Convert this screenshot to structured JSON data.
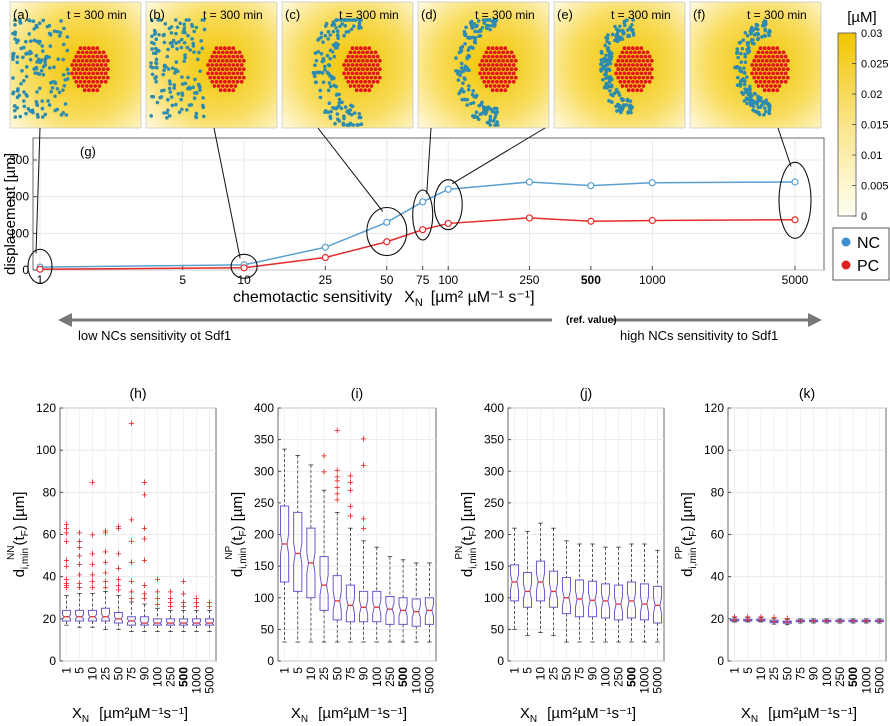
{
  "panels": {
    "snapshots": [
      {
        "label": "(a)",
        "time": "t = 300 min"
      },
      {
        "label": "(b)",
        "time": "t = 300 min"
      },
      {
        "label": "(c)",
        "time": "t = 300 min"
      },
      {
        "label": "(d)",
        "time": "t = 300 min"
      },
      {
        "label": "(e)",
        "time": "t = 300 min"
      },
      {
        "label": "(f)",
        "time": "t = 300 min"
      }
    ],
    "colorbar": {
      "unit": "[µM]",
      "ticks": [
        "0.03",
        "0.025",
        "0.02",
        "0.015",
        "0.01",
        "0.005",
        "0"
      ],
      "range": [
        0,
        0.03
      ],
      "color_low": "#fffde8",
      "color_high": "#f2c400"
    },
    "legend": [
      {
        "name": "NC",
        "color": "#3a8fd0"
      },
      {
        "name": "PC",
        "color": "#e02020"
      }
    ],
    "arrows": {
      "left_text": "low NCs sensitivity ot Sdf1",
      "mid_text": "(ref. value)",
      "right_text": "high NCs sensitivity to Sdf1"
    }
  },
  "chart_data": [
    {
      "type": "line",
      "panel_label": "(g)",
      "xscale": "log",
      "x": [
        1,
        10,
        25,
        50,
        75,
        100,
        250,
        500,
        1000,
        5000
      ],
      "x_tick_labels": [
        "1",
        "5",
        "10",
        "25",
        "50",
        "75",
        "100",
        "250",
        "500",
        "1000",
        "5000"
      ],
      "x_tick_values": [
        1,
        5,
        10,
        25,
        50,
        75,
        100,
        250,
        500,
        1000,
        5000
      ],
      "bold_tick": "500",
      "xlabel": "chemotactic sensitivity",
      "xlabel_symbol": "X",
      "xlabel_sub": "N",
      "xlabel_units": "[µm² µM⁻¹ s⁻¹]",
      "ylabel": "displacement [µm]",
      "ylim": [
        0,
        360
      ],
      "yticks": [
        0,
        100,
        200,
        300
      ],
      "grid": true,
      "series": [
        {
          "name": "NC",
          "color": "#5a9fd0",
          "values": [
            8,
            14,
            62,
            130,
            186,
            220,
            240,
            230,
            238,
            240
          ]
        },
        {
          "name": "PC",
          "color": "#e52a2a",
          "values": [
            2,
            6,
            34,
            77,
            110,
            127,
            142,
            133,
            135,
            137
          ]
        }
      ]
    },
    {
      "type": "box",
      "panel_label": "(h)",
      "categories": [
        "1",
        "5",
        "10",
        "25",
        "50",
        "75",
        "90",
        "100",
        "250",
        "500",
        "1000",
        "5000"
      ],
      "bold_category": "500",
      "ylim": [
        0,
        120
      ],
      "yticks": [
        0,
        20,
        40,
        60,
        80,
        100,
        120
      ],
      "ylabel_main": "d",
      "ylabel_sub": "i,min",
      "ylabel_sup": "NN",
      "ylabel_arg": "(t",
      "ylabel_arg_sub": "F",
      "ylabel_tail": ")  [µm]",
      "xlabel_symbol": "X",
      "xlabel_sub": "N",
      "xlabel_units": "[µm²µM⁻¹s⁻¹]",
      "boxes": [
        {
          "lo": 17,
          "q1": 19,
          "med": 21,
          "q3": 24,
          "hi": 31,
          "outliers": [
            35,
            36,
            37,
            39,
            45,
            48,
            57,
            61,
            63,
            65
          ]
        },
        {
          "lo": 16,
          "q1": 19,
          "med": 21,
          "q3": 24,
          "hi": 32,
          "outliers": [
            35,
            37,
            41,
            46,
            50,
            54,
            57,
            61
          ]
        },
        {
          "lo": 16,
          "q1": 19,
          "med": 21,
          "q3": 24,
          "hi": 32,
          "outliers": [
            35,
            38,
            41,
            46,
            51,
            60,
            85
          ]
        },
        {
          "lo": 15,
          "q1": 19,
          "med": 21,
          "q3": 25,
          "hi": 33,
          "outliers": [
            35,
            38,
            42,
            47,
            52,
            61,
            62
          ]
        },
        {
          "lo": 15,
          "q1": 18,
          "med": 20,
          "q3": 23,
          "hi": 31,
          "outliers": [
            34,
            36,
            39,
            44,
            51,
            63,
            64
          ]
        },
        {
          "lo": 14,
          "q1": 17,
          "med": 19,
          "q3": 21,
          "hi": 28,
          "outliers": [
            30,
            33,
            38,
            47,
            57,
            67,
            113
          ]
        },
        {
          "lo": 14,
          "q1": 17,
          "med": 18,
          "q3": 21,
          "hi": 27,
          "outliers": [
            30,
            32,
            36,
            48,
            58,
            63,
            79,
            85
          ]
        },
        {
          "lo": 14,
          "q1": 17,
          "med": 18,
          "q3": 20,
          "hi": 25,
          "outliers": [
            27,
            30,
            33,
            39
          ]
        },
        {
          "lo": 14,
          "q1": 17,
          "med": 18,
          "q3": 20,
          "hi": 24,
          "outliers": [
            26,
            28,
            30,
            33
          ]
        },
        {
          "lo": 14,
          "q1": 17,
          "med": 18,
          "q3": 20,
          "hi": 24,
          "outliers": [
            26,
            28,
            32,
            38
          ]
        },
        {
          "lo": 14,
          "q1": 17,
          "med": 18,
          "q3": 20,
          "hi": 24,
          "outliers": [
            26,
            28,
            30
          ]
        },
        {
          "lo": 14,
          "q1": 17,
          "med": 18,
          "q3": 20,
          "hi": 24,
          "outliers": [
            26,
            28
          ]
        }
      ]
    },
    {
      "type": "box",
      "panel_label": "(i)",
      "categories": [
        "1",
        "5",
        "10",
        "25",
        "50",
        "75",
        "90",
        "100",
        "250",
        "500",
        "1000",
        "5000"
      ],
      "bold_category": "500",
      "ylim": [
        0,
        400
      ],
      "yticks": [
        0,
        50,
        100,
        150,
        200,
        250,
        300,
        350,
        400
      ],
      "ylabel_main": "d",
      "ylabel_sub": "i,min",
      "ylabel_sup": "NP",
      "ylabel_arg": "(t",
      "ylabel_arg_sub": "F",
      "ylabel_tail": ")  [µm]",
      "xlabel_symbol": "X",
      "xlabel_sub": "N",
      "xlabel_units": "[µm²µM⁻¹s⁻¹]",
      "boxes": [
        {
          "lo": 30,
          "q1": 125,
          "med": 185,
          "q3": 245,
          "hi": 335,
          "outliers": []
        },
        {
          "lo": 30,
          "q1": 110,
          "med": 170,
          "q3": 235,
          "hi": 325,
          "outliers": []
        },
        {
          "lo": 30,
          "q1": 100,
          "med": 155,
          "q3": 210,
          "hi": 310,
          "outliers": []
        },
        {
          "lo": 30,
          "q1": 80,
          "med": 120,
          "q3": 165,
          "hi": 270,
          "outliers": [
            300,
            325
          ]
        },
        {
          "lo": 30,
          "q1": 65,
          "med": 95,
          "q3": 135,
          "hi": 235,
          "outliers": [
            255,
            265,
            275,
            285,
            292,
            302,
            365
          ]
        },
        {
          "lo": 30,
          "q1": 62,
          "med": 88,
          "q3": 120,
          "hi": 210,
          "outliers": [
            230,
            245,
            270,
            283,
            293
          ]
        },
        {
          "lo": 30,
          "q1": 62,
          "med": 85,
          "q3": 110,
          "hi": 190,
          "outliers": [
            210,
            225,
            310,
            352
          ]
        },
        {
          "lo": 30,
          "q1": 62,
          "med": 85,
          "q3": 110,
          "hi": 180,
          "outliers": []
        },
        {
          "lo": 30,
          "q1": 58,
          "med": 82,
          "q3": 102,
          "hi": 165,
          "outliers": []
        },
        {
          "lo": 30,
          "q1": 58,
          "med": 80,
          "q3": 100,
          "hi": 160,
          "outliers": []
        },
        {
          "lo": 30,
          "q1": 55,
          "med": 78,
          "q3": 98,
          "hi": 155,
          "outliers": []
        },
        {
          "lo": 30,
          "q1": 58,
          "med": 80,
          "q3": 100,
          "hi": 155,
          "outliers": []
        }
      ]
    },
    {
      "type": "box",
      "panel_label": "(j)",
      "categories": [
        "1",
        "5",
        "10",
        "25",
        "50",
        "75",
        "90",
        "100",
        "250",
        "500",
        "1000",
        "5000"
      ],
      "bold_category": "500",
      "ylim": [
        0,
        400
      ],
      "yticks": [
        0,
        50,
        100,
        150,
        200,
        250,
        300,
        350,
        400
      ],
      "ylabel_main": "d",
      "ylabel_sub": "i,min",
      "ylabel_sup": "PN",
      "ylabel_arg": "(t",
      "ylabel_arg_sub": "F",
      "ylabel_tail": ")  [µm]",
      "xlabel_symbol": "X",
      "xlabel_sub": "N",
      "xlabel_units": "[µm²µM⁻¹s⁻¹]",
      "boxes": [
        {
          "lo": 50,
          "q1": 95,
          "med": 125,
          "q3": 152,
          "hi": 210,
          "outliers": []
        },
        {
          "lo": 40,
          "q1": 85,
          "med": 110,
          "q3": 140,
          "hi": 205,
          "outliers": []
        },
        {
          "lo": 45,
          "q1": 95,
          "med": 125,
          "q3": 158,
          "hi": 218,
          "outliers": []
        },
        {
          "lo": 40,
          "q1": 85,
          "med": 110,
          "q3": 142,
          "hi": 210,
          "outliers": []
        },
        {
          "lo": 30,
          "q1": 75,
          "med": 100,
          "q3": 132,
          "hi": 190,
          "outliers": []
        },
        {
          "lo": 30,
          "q1": 70,
          "med": 98,
          "q3": 128,
          "hi": 185,
          "outliers": []
        },
        {
          "lo": 30,
          "q1": 70,
          "med": 96,
          "q3": 126,
          "hi": 185,
          "outliers": []
        },
        {
          "lo": 30,
          "q1": 68,
          "med": 95,
          "q3": 122,
          "hi": 180,
          "outliers": []
        },
        {
          "lo": 30,
          "q1": 65,
          "med": 90,
          "q3": 120,
          "hi": 180,
          "outliers": []
        },
        {
          "lo": 30,
          "q1": 68,
          "med": 95,
          "q3": 125,
          "hi": 185,
          "outliers": []
        },
        {
          "lo": 30,
          "q1": 65,
          "med": 90,
          "q3": 122,
          "hi": 185,
          "outliers": []
        },
        {
          "lo": 30,
          "q1": 60,
          "med": 88,
          "q3": 118,
          "hi": 175,
          "outliers": []
        }
      ]
    },
    {
      "type": "box",
      "panel_label": "(k)",
      "categories": [
        "1",
        "5",
        "10",
        "25",
        "50",
        "75",
        "90",
        "100",
        "250",
        "500",
        "1000",
        "5000"
      ],
      "bold_category": "500",
      "ylim": [
        0,
        120
      ],
      "yticks": [
        0,
        20,
        40,
        60,
        80,
        100,
        120
      ],
      "ylabel_main": "d",
      "ylabel_sub": "i,min",
      "ylabel_sup": "PP",
      "ylabel_arg": "(t",
      "ylabel_arg_sub": "F",
      "ylabel_tail": ")  [µm]",
      "xlabel_symbol": "X",
      "xlabel_sub": "N",
      "xlabel_units": "[µm²µM⁻¹s⁻¹]",
      "boxes": [
        {
          "lo": 18.5,
          "q1": 19,
          "med": 19.3,
          "q3": 19.8,
          "hi": 20.5,
          "outliers": [
            21
          ]
        },
        {
          "lo": 18.5,
          "q1": 19,
          "med": 19.3,
          "q3": 19.8,
          "hi": 20.5,
          "outliers": [
            21
          ]
        },
        {
          "lo": 18.5,
          "q1": 19,
          "med": 19.4,
          "q3": 19.9,
          "hi": 20.6,
          "outliers": [
            21
          ]
        },
        {
          "lo": 17.5,
          "q1": 18.2,
          "med": 18.7,
          "q3": 19.3,
          "hi": 20,
          "outliers": [
            20.8
          ]
        },
        {
          "lo": 17.2,
          "q1": 17.9,
          "med": 18.4,
          "q3": 19,
          "hi": 19.8,
          "outliers": [
            20.5
          ]
        },
        {
          "lo": 18,
          "q1": 18.6,
          "med": 19,
          "q3": 19.4,
          "hi": 20,
          "outliers": []
        },
        {
          "lo": 18,
          "q1": 18.6,
          "med": 19,
          "q3": 19.4,
          "hi": 20,
          "outliers": []
        },
        {
          "lo": 18,
          "q1": 18.6,
          "med": 19,
          "q3": 19.4,
          "hi": 20,
          "outliers": []
        },
        {
          "lo": 18,
          "q1": 18.6,
          "med": 19,
          "q3": 19.4,
          "hi": 20,
          "outliers": []
        },
        {
          "lo": 18,
          "q1": 18.6,
          "med": 19,
          "q3": 19.4,
          "hi": 20,
          "outliers": []
        },
        {
          "lo": 18,
          "q1": 18.6,
          "med": 19,
          "q3": 19.4,
          "hi": 20,
          "outliers": []
        },
        {
          "lo": 18,
          "q1": 18.6,
          "med": 19,
          "q3": 19.4,
          "hi": 20,
          "outliers": []
        }
      ]
    }
  ]
}
